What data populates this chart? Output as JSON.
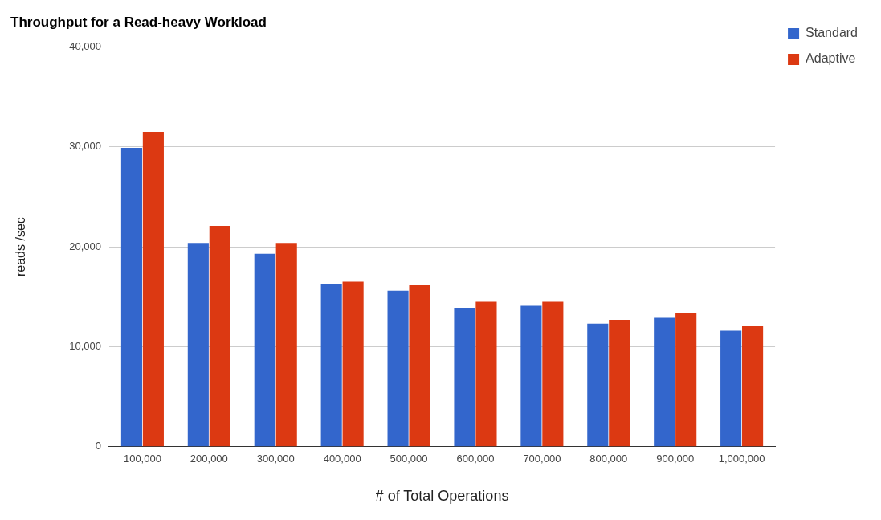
{
  "chart_data": {
    "type": "bar",
    "title": "Throughput for a Read-heavy Workload",
    "xlabel": "# of Total Operations",
    "ylabel": "reads /sec",
    "categories": [
      "100,000",
      "200,000",
      "300,000",
      "400,000",
      "500,000",
      "600,000",
      "700,000",
      "800,000",
      "900,000",
      "1,000,000"
    ],
    "series": [
      {
        "name": "Standard",
        "color": "#3366cc",
        "values": [
          29900,
          20400,
          19300,
          16300,
          15600,
          13900,
          14100,
          12300,
          12900,
          11600
        ]
      },
      {
        "name": "Adaptive",
        "color": "#dc3912",
        "values": [
          31500,
          22100,
          20400,
          16500,
          16200,
          14500,
          14500,
          12700,
          13400,
          12100
        ]
      }
    ],
    "ylim": [
      0,
      40000
    ],
    "yticks": [
      0,
      {
        "value": 10000,
        "label": "10,000"
      },
      {
        "value": 20000,
        "label": "20,000"
      },
      {
        "value": 30000,
        "label": "30,000"
      },
      {
        "value": 40000,
        "label": "40,000"
      }
    ],
    "grid": "y",
    "legend": "right"
  }
}
